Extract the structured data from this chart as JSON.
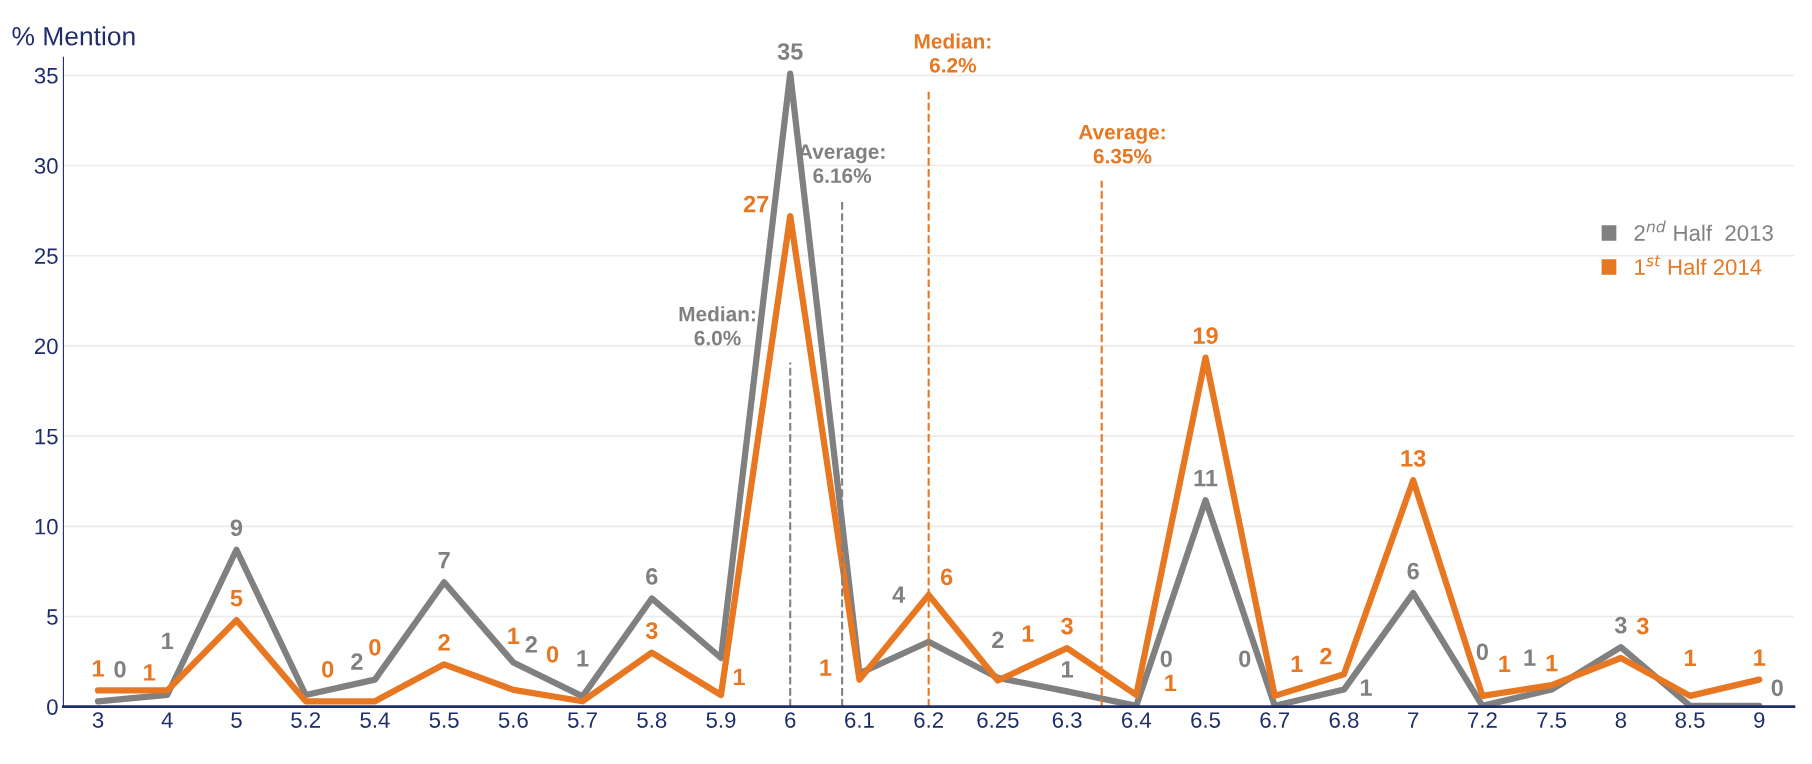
{
  "chart_data": {
    "type": "line",
    "ylabel": "% Mention",
    "categories": [
      "3",
      "4",
      "5",
      "5.2",
      "5.4",
      "5.5",
      "5.6",
      "5.7",
      "5.8",
      "5.9",
      "6",
      "6.1",
      "6.2",
      "6.25",
      "6.3",
      "6.4",
      "6.5",
      "6.7",
      "6.8",
      "7",
      "7.2",
      "7.5",
      "8",
      "8.5",
      "9"
    ],
    "series": [
      {
        "name": "2$^{nd}$ Half  2013",
        "color": "#808080",
        "values": [
          0.3,
          0.65,
          8.7,
          0.65,
          1.5,
          6.9,
          2.45,
          0.57,
          6.0,
          2.7,
          35.1,
          1.85,
          3.6,
          1.6,
          0.85,
          0.05,
          11.45,
          0.05,
          0.95,
          6.3,
          0.05,
          0.95,
          3.3,
          0.05,
          0.05
        ],
        "value_labels": [
          "0",
          "1",
          "9",
          null,
          "2",
          "7",
          "2",
          "1",
          "6",
          null,
          "35",
          null,
          "4",
          "2",
          "1",
          "0",
          "11",
          "0",
          "1",
          "6",
          "0",
          "1",
          "3",
          null,
          "0"
        ]
      },
      {
        "name": "1$^{st}$ Half 2014",
        "color": "#e87722",
        "values": [
          0.9,
          0.9,
          4.8,
          0.3,
          0.3,
          2.35,
          0.93,
          0.3,
          3.0,
          0.65,
          27.2,
          1.5,
          6.2,
          1.45,
          3.25,
          0.65,
          19.35,
          0.6,
          1.8,
          12.55,
          0.6,
          1.2,
          2.7,
          0.6,
          1.5
        ],
        "value_labels": [
          "1",
          "1",
          "5",
          "0",
          "0",
          "2",
          "1",
          "0",
          "3",
          "1",
          "27",
          "1",
          "6",
          "1",
          "3",
          "1",
          "19",
          "1",
          "2",
          "13",
          "1",
          "1",
          "3",
          "1",
          "1"
        ]
      }
    ],
    "ylim": [
      0,
      36
    ],
    "yticks": [
      0,
      5,
      10,
      15,
      20,
      25,
      30,
      35
    ],
    "grid": "y",
    "legend": "right",
    "marker": "none",
    "line_style": "solid",
    "ref_lines": [
      {
        "axis": "x",
        "value": "6",
        "label": "Median:\n6.0%",
        "color": "#808080",
        "line_style": "dashed"
      },
      {
        "axis": "x",
        "value": "6.2",
        "label": "Median:\n6.2%",
        "color": "#e87722",
        "line_style": "dashed"
      }
    ],
    "annotations": [
      "Average:\n6.16%",
      "Average:\n6.35%"
    ]
  }
}
